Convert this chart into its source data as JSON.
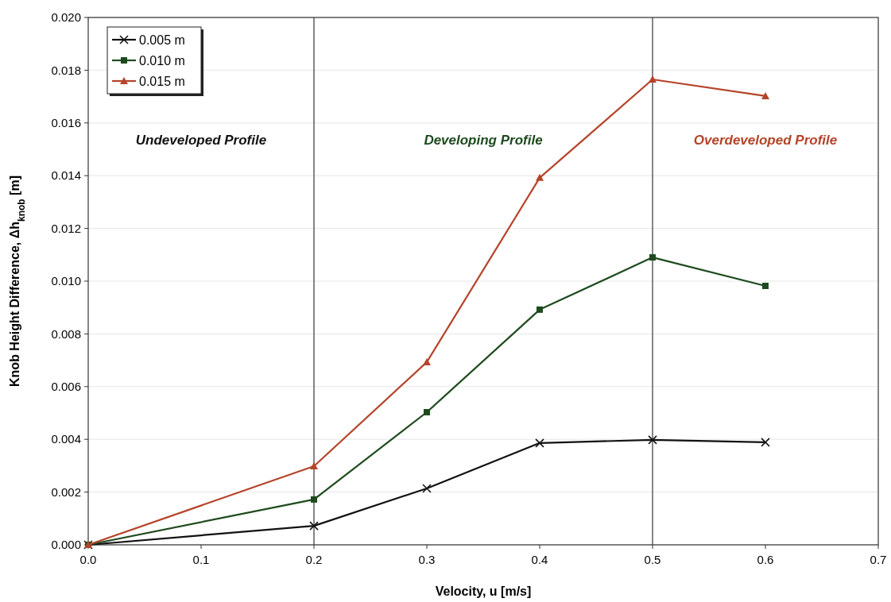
{
  "chart_data": {
    "type": "line",
    "xlabel": "Velocity, u  [m/s]",
    "ylabel": "Knob Height Difference, Δh$_{knob}$ [m]",
    "x": [
      0,
      0.2,
      0.3,
      0.4,
      0.5,
      0.6
    ],
    "series": [
      {
        "name": "0.005 m",
        "color": "#111111",
        "marker": "cross",
        "values": [
          0,
          0.00072,
          0.00214,
          0.00386,
          0.00398,
          0.00389
        ]
      },
      {
        "name": "0.010 m",
        "color": "#1e4a1e",
        "marker": "square",
        "values": [
          0,
          0.00172,
          0.00503,
          0.00892,
          0.0109,
          0.00982
        ]
      },
      {
        "name": "0.015 m",
        "color": "#b5442a",
        "marker": "triangle",
        "values": [
          0,
          0.00298,
          0.00693,
          0.01392,
          0.01765,
          0.01702
        ]
      }
    ],
    "xlim": [
      0,
      0.7
    ],
    "ylim": [
      0,
      0.02
    ],
    "xticks": [
      {
        "value": 0,
        "label": "0.0"
      },
      {
        "value": 0.1,
        "label": "0.1"
      },
      {
        "value": 0.2,
        "label": "0.2"
      },
      {
        "value": 0.3,
        "label": "0.3"
      },
      {
        "value": 0.4,
        "label": "0.4"
      },
      {
        "value": 0.5,
        "label": "0.5"
      },
      {
        "value": 0.6,
        "label": "0.6"
      },
      {
        "value": 0.7,
        "label": "0.7"
      }
    ],
    "yticks": [
      {
        "value": 0,
        "label": "0.000"
      },
      {
        "value": 0.002,
        "label": "0.002"
      },
      {
        "value": 0.004,
        "label": "0.004"
      },
      {
        "value": 0.006,
        "label": "0.006"
      },
      {
        "value": 0.008,
        "label": "0.008"
      },
      {
        "value": 0.01,
        "label": "0.010"
      },
      {
        "value": 0.012,
        "label": "0.012"
      },
      {
        "value": 0.014,
        "label": "0.014"
      },
      {
        "value": 0.016,
        "label": "0.016"
      },
      {
        "value": 0.018,
        "label": "0.018"
      },
      {
        "value": 0.02,
        "label": "0.020"
      }
    ],
    "ref_lines": [
      {
        "axis": "x",
        "value": 0.2,
        "color": "#444444"
      },
      {
        "axis": "x",
        "value": 0.5,
        "color": "#444444"
      }
    ],
    "annotations": [
      "Undeveloped Profile",
      "Developing Profile",
      "Overdeveloped Profile"
    ],
    "grid": "y",
    "legend": "top left"
  }
}
